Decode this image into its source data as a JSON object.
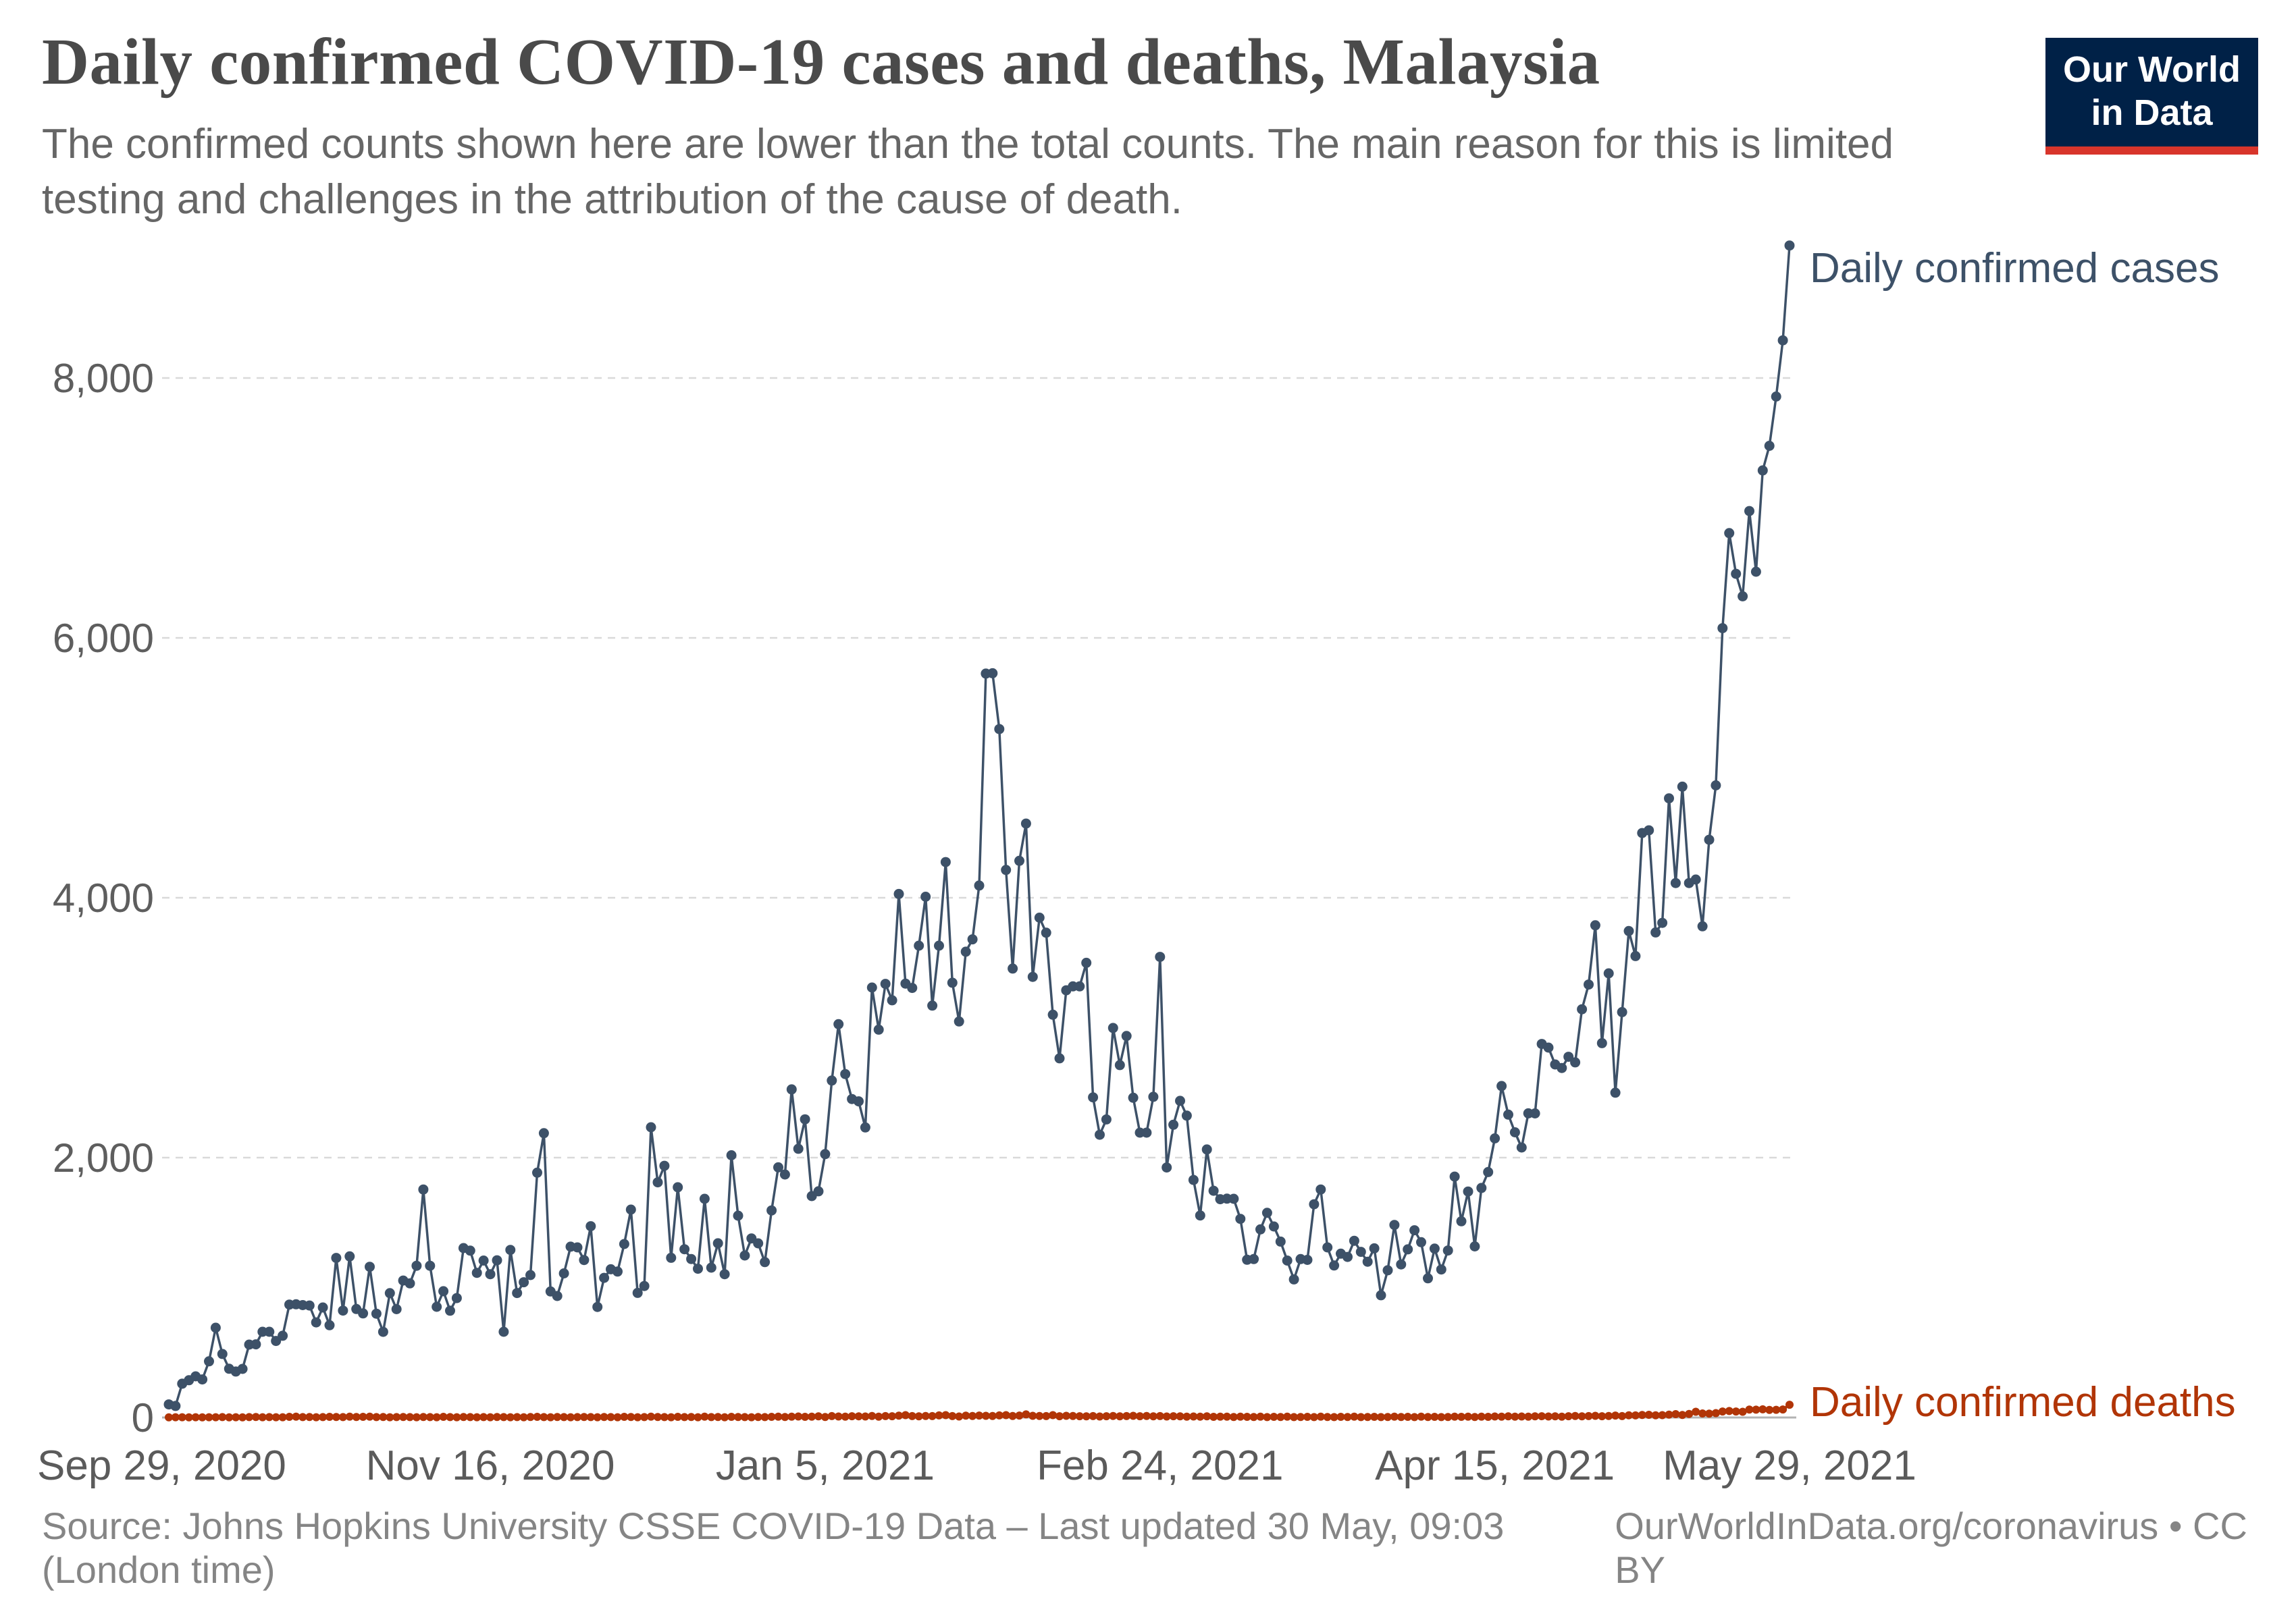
{
  "header": {
    "title": "Daily confirmed COVID-19 cases and deaths, Malaysia",
    "subtitle": "The confirmed counts shown here are lower than the total counts. The main reason for this is limited testing and challenges in the attribution of the cause of death."
  },
  "logo": {
    "line1": "Our World",
    "line2": "in Data",
    "bg": "#002147",
    "accent": "#d8352b"
  },
  "footer": {
    "source": "Source: Johns Hopkins University CSSE COVID-19 Data – Last updated 30 May, 09:03 (London time)",
    "link": "OurWorldInData.org/coronavirus • CC BY"
  },
  "chart_data": {
    "type": "line",
    "title": "Daily confirmed COVID-19 cases and deaths, Malaysia",
    "x_start_date": "Sep 29, 2020",
    "x_end_date": "May 29, 2021",
    "x_unit": "day",
    "grid": "horizontal-dashed",
    "legend_position": "line-end-labels",
    "ylim": [
      0,
      9300
    ],
    "yticks": [
      0,
      2000,
      4000,
      6000,
      8000
    ],
    "ytick_labels": [
      "0",
      "2,000",
      "4,000",
      "6,000",
      "8,000"
    ],
    "xticks": [
      {
        "label": "Sep 29, 2020",
        "day": 0
      },
      {
        "label": "Nov 16, 2020",
        "day": 48
      },
      {
        "label": "Jan 5, 2021",
        "day": 98
      },
      {
        "label": "Feb 24, 2021",
        "day": 148
      },
      {
        "label": "Apr 15, 2021",
        "day": 198
      },
      {
        "label": "May 29, 2021",
        "day": 242
      }
    ],
    "series": [
      {
        "name": "Daily confirmed cases",
        "color": "#3d5168",
        "values": [
          101,
          89,
          260,
          287,
          317,
          293,
          432,
          691,
          489,
          375,
          354,
          374,
          561,
          563,
          660,
          660,
          589,
          629,
          869,
          871,
          865,
          862,
          732,
          847,
          710,
          1228,
          823,
          1240,
          835,
          801,
          1160,
          799,
          659,
          957,
          834,
          1054,
          1032,
          1168,
          1755,
          1168,
          852,
          972,
          822,
          919,
          1304,
          1284,
          1113,
          1208,
          1103,
          1210,
          660,
          1290,
          958,
          1041,
          1096,
          1884,
          2188,
          970,
          935,
          1109,
          1315,
          1309,
          1212,
          1472,
          851,
          1075,
          1141,
          1123,
          1335,
          1600,
          959,
          1012,
          2234,
          1810,
          1937,
          1229,
          1772,
          1295,
          1220,
          1145,
          1683,
          1153,
          1341,
          1103,
          2018,
          1553,
          1247,
          1378,
          1340,
          1196,
          1594,
          1925,
          1870,
          2525,
          2068,
          2295,
          1704,
          1741,
          2027,
          2593,
          3027,
          2643,
          2451,
          2433,
          2232,
          3309,
          2985,
          3337,
          3211,
          4029,
          3339,
          3306,
          3631,
          4008,
          3170,
          3631,
          4275,
          3346,
          3048,
          3585,
          3680,
          4094,
          5725,
          5728,
          5298,
          4214,
          3455,
          4284,
          4571,
          3391,
          3847,
          3731,
          3100,
          2764,
          3288,
          3318,
          3318,
          3499,
          2464,
          2176,
          2294,
          2998,
          2712,
          2936,
          2461,
          2192,
          2192,
          2468,
          3545,
          1924,
          2253,
          2437,
          2323,
          1828,
          1555,
          2063,
          1745,
          1680,
          1684,
          1683,
          1529,
          1214,
          1219,
          1448,
          1575,
          1470,
          1354,
          1208,
          1063,
          1219,
          1213,
          1641,
          1755,
          1309,
          1170,
          1261,
          1236,
          1360,
          1275,
          1199,
          1302,
          941,
          1133,
          1482,
          1178,
          1294,
          1441,
          1349,
          1071,
          1300,
          1139,
          1285,
          1854,
          1510,
          1739,
          1317,
          1767,
          1889,
          2148,
          2551,
          2331,
          2195,
          2078,
          2341,
          2340,
          2875,
          2847,
          2717,
          2690,
          2776,
          2733,
          3142,
          3332,
          3788,
          2881,
          3418,
          2500,
          3120,
          3744,
          3551,
          4498,
          4519,
          3733,
          3807,
          4765,
          4113,
          4855,
          4113,
          4140,
          3780,
          4446,
          4865,
          6075,
          6806,
          6493,
          6320,
          6976,
          6509,
          7289,
          7478,
          7857,
          8290,
          9020
        ]
      },
      {
        "name": "Daily confirmed deaths",
        "color": "#b13507",
        "values": [
          1,
          2,
          2,
          1,
          2,
          1,
          2,
          2,
          3,
          1,
          2,
          1,
          3,
          4,
          2,
          3,
          2,
          2,
          5,
          6,
          3,
          4,
          2,
          3,
          5,
          4,
          3,
          6,
          4,
          5,
          7,
          3,
          4,
          2,
          3,
          4,
          3,
          2,
          4,
          3,
          2,
          5,
          3,
          2,
          4,
          3,
          2,
          3,
          2,
          4,
          3,
          2,
          3,
          2,
          4,
          5,
          3,
          2,
          4,
          3,
          2,
          3,
          4,
          3,
          2,
          4,
          3,
          2,
          5,
          4,
          2,
          3,
          6,
          4,
          3,
          2,
          5,
          3,
          4,
          2,
          6,
          3,
          4,
          2,
          5,
          4,
          3,
          2,
          4,
          3,
          5,
          6,
          4,
          7,
          8,
          5,
          6,
          9,
          4,
          11,
          8,
          7,
          10,
          9,
          8,
          12,
          7,
          11,
          10,
          14,
          18,
          11,
          9,
          12,
          11,
          16,
          18,
          11,
          8,
          14,
          12,
          15,
          13,
          12,
          16,
          18,
          12,
          15,
          24,
          13,
          12,
          11,
          18,
          10,
          13,
          12,
          10,
          9,
          11,
          8,
          10,
          12,
          9,
          11,
          13,
          10,
          12,
          9,
          11,
          8,
          10,
          9,
          7,
          8,
          6,
          9,
          5,
          7,
          6,
          4,
          6,
          5,
          4,
          6,
          3,
          5,
          4,
          6,
          3,
          4,
          5,
          3,
          6,
          4,
          3,
          5,
          4,
          6,
          3,
          4,
          5,
          3,
          4,
          6,
          4,
          5,
          3,
          6,
          4,
          5,
          3,
          4,
          6,
          5,
          7,
          4,
          6,
          5,
          8,
          7,
          9,
          6,
          8,
          7,
          9,
          10,
          8,
          9,
          7,
          10,
          12,
          9,
          11,
          13,
          10,
          12,
          15,
          11,
          17,
          16,
          19,
          21,
          17,
          18,
          22,
          26,
          20,
          27,
          44,
          31,
          30,
          34,
          46,
          50,
          46,
          44,
          61,
          60,
          63,
          58,
          59,
          62,
          98
        ]
      }
    ]
  }
}
